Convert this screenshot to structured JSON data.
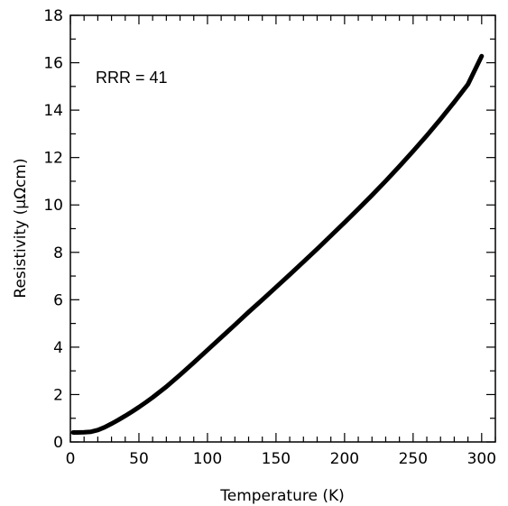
{
  "chart_data": {
    "type": "line",
    "title": "",
    "xlabel": "Temperature (K)",
    "ylabel": "Resistivity (μΩcm)",
    "xlim": [
      0,
      310
    ],
    "ylim": [
      0,
      18
    ],
    "xticks": [
      0,
      50,
      100,
      150,
      200,
      250,
      300
    ],
    "yticks": [
      0,
      2,
      4,
      6,
      8,
      10,
      12,
      14,
      16,
      18
    ],
    "grid": false,
    "legend": "none",
    "annotation": "RRR = 41",
    "line_color": "#000000",
    "series": [
      {
        "x": [
          2,
          5,
          10,
          15,
          20,
          25,
          30,
          35,
          40,
          45,
          50,
          55,
          60,
          70,
          80,
          90,
          100,
          110,
          120,
          130,
          140,
          150,
          160,
          170,
          180,
          190,
          200,
          210,
          220,
          230,
          240,
          250,
          260,
          270,
          280,
          290,
          300
        ],
        "y": [
          0.4,
          0.4,
          0.41,
          0.43,
          0.5,
          0.62,
          0.77,
          0.93,
          1.1,
          1.28,
          1.47,
          1.67,
          1.88,
          2.33,
          2.83,
          3.35,
          3.88,
          4.41,
          4.94,
          5.48,
          6.0,
          6.53,
          7.06,
          7.6,
          8.14,
          8.7,
          9.26,
          9.83,
          10.41,
          11.01,
          11.63,
          12.27,
          12.93,
          13.62,
          14.34,
          15.09,
          16.28
        ]
      }
    ]
  }
}
